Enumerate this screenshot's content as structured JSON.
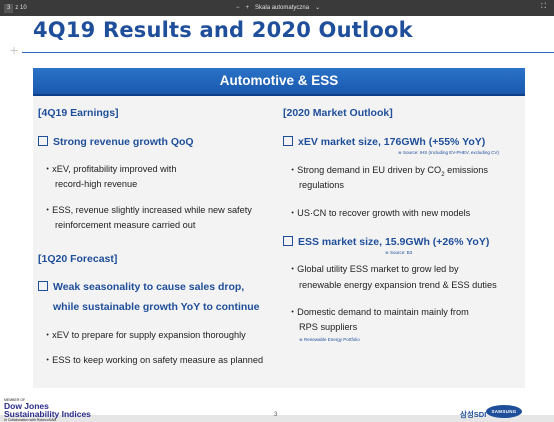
{
  "toolbar": {
    "page_current": "3",
    "page_total": "z 10",
    "zoom_out": "−",
    "zoom_in": "+",
    "zoom_value": "Skala automatyczna",
    "zoom_caret": "⌄",
    "fit": "⛶"
  },
  "slide": {
    "title": "4Q19 Results and 2020 Outlook",
    "plus": "+",
    "band_title": "Automotive & ESS",
    "left": {
      "earnings_head": "[4Q19 Earnings]",
      "item1_head": "Strong revenue growth QoQ",
      "item1_b1_l1": "・xEV, profitability improved with",
      "item1_b1_l2": "record-high revenue",
      "item1_b2_l1": "・ESS, revenue slightly increased while new safety",
      "item1_b2_l2": "reinforcement measure carried out",
      "forecast_head": "[1Q20 Forecast]",
      "item2_head_l1": "Weak seasonality to cause sales drop,",
      "item2_head_l2": "while sustainable growth YoY to continue",
      "item2_b1": "・xEV to prepare for supply expansion thoroughly",
      "item2_b2": "・ESS to keep working on safety measure as planned"
    },
    "right": {
      "outlook_head": "[2020 Market Outlook]",
      "item1_head": "xEV market size, 176GWh (+55% YoY)",
      "item1_src": "※ Source: IHS (Including EV-PHEV, excluding CV)",
      "item1_b1_l1_a": "・Strong demand in EU driven by CO",
      "item1_b1_l1_sub": "2",
      "item1_b1_l1_b": " emissions",
      "item1_b1_l2": "regulations",
      "item1_b2": "・US·CN to recover growth with new models",
      "item2_head": "ESS market size, 15.9GWh (+26% YoY)",
      "item2_src": "※ Source: B3",
      "item2_b1_l1": "・Global utility ESS market to grow led by",
      "item2_b1_l2": "renewable energy expansion trend & ESS duties",
      "item2_b2_l1": "・Domestic demand to maintain mainly from",
      "item2_b2_l2": "RPS suppliers",
      "item2_note": "※ Renewable Energy Portfolio"
    },
    "footer": {
      "dj_member": "MEMBER OF",
      "dj_line1": "Dow Jones",
      "dj_line2": "Sustainability Indices",
      "dj_collab": "In Collaboration with RobecoSAM",
      "page_number": "3",
      "sdi_logo": "삼성SDI",
      "samsung_logo": "SAMSUNG"
    }
  }
}
